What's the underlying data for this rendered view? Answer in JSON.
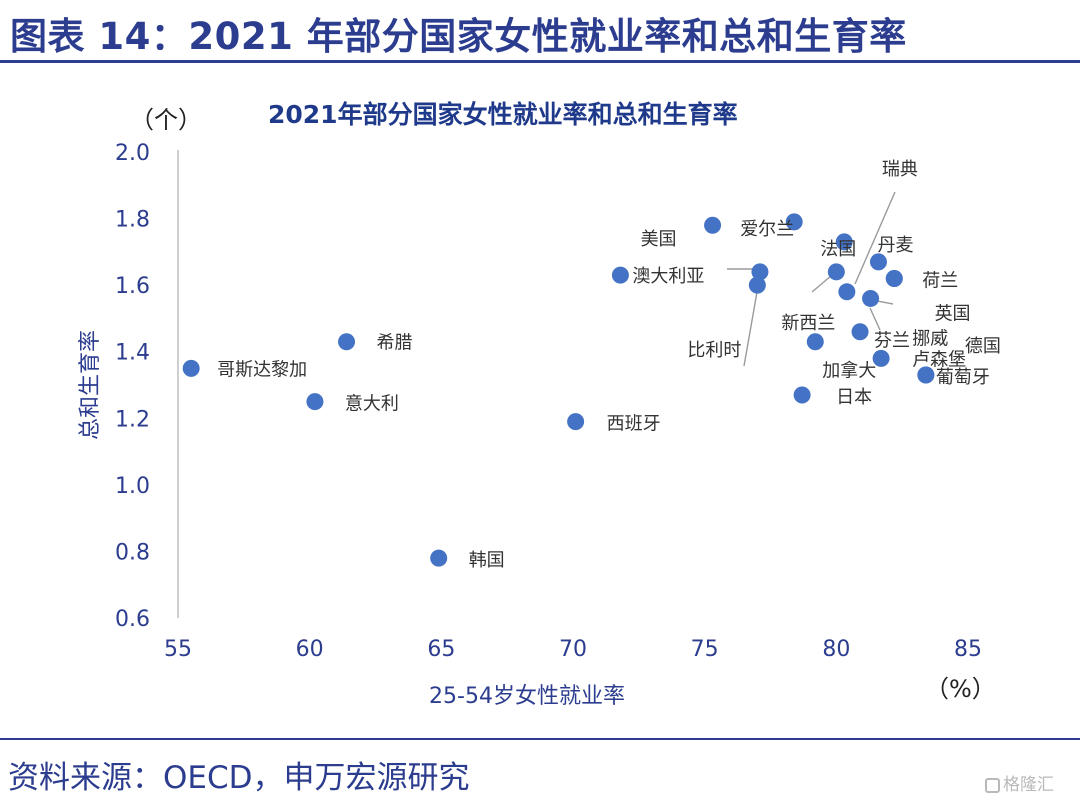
{
  "figure": {
    "title": "图表 14：2021 年部分国家女性就业率和总和生育率",
    "source": "资料来源：OECD，申万宏源研究",
    "watermark": "格隆汇"
  },
  "colors": {
    "accent": "#2c3d8f",
    "marker": "#4472c4",
    "chart_title": "#1f3a8a"
  },
  "chart_data": {
    "type": "scatter",
    "title": "2021年部分国家女性就业率和总和生育率",
    "xlabel": "25-54岁女性就业率",
    "ylabel": "总和生育率",
    "x_unit": "（%）",
    "y_unit": "（个）",
    "xlim": [
      55,
      85
    ],
    "ylim": [
      0.6,
      2.0
    ],
    "xticks": [
      "55",
      "60",
      "65",
      "70",
      "75",
      "80",
      "85"
    ],
    "yticks": [
      "0.6",
      "0.8",
      "1.0",
      "1.2",
      "1.4",
      "1.6",
      "1.8",
      "2.0"
    ],
    "grid": false,
    "legend": "none",
    "points": [
      {
        "label": "哥斯达黎加",
        "x": 55.5,
        "y": 1.35
      },
      {
        "label": "意大利",
        "x": 60.2,
        "y": 1.25
      },
      {
        "label": "希腊",
        "x": 61.4,
        "y": 1.43
      },
      {
        "label": "韩国",
        "x": 64.9,
        "y": 0.78
      },
      {
        "label": "西班牙",
        "x": 70.1,
        "y": 1.19
      },
      {
        "label": "澳大利亚",
        "x": 71.8,
        "y": 1.63
      },
      {
        "label": "美国",
        "x": 75.3,
        "y": 1.78
      },
      {
        "label": "比利时",
        "x": 77.0,
        "y": 1.6
      },
      {
        "label": "",
        "x": 77.1,
        "y": 1.64
      },
      {
        "label": "爱尔兰",
        "x": 78.4,
        "y": 1.79
      },
      {
        "label": "日本",
        "x": 78.7,
        "y": 1.27
      },
      {
        "label": "加拿大",
        "x": 79.2,
        "y": 1.43
      },
      {
        "label": "新西兰",
        "x": 80.0,
        "y": 1.64
      },
      {
        "label": "法国",
        "x": 80.3,
        "y": 1.73
      },
      {
        "label": "瑞典",
        "x": 80.4,
        "y": 1.58
      },
      {
        "label": "芬兰",
        "x": 80.9,
        "y": 1.46
      },
      {
        "label": "英国",
        "x": 81.3,
        "y": 1.56
      },
      {
        "label": "丹麦",
        "x": 81.6,
        "y": 1.67
      },
      {
        "label": "卢森堡",
        "x": 81.7,
        "y": 1.38
      },
      {
        "label": "荷兰",
        "x": 82.2,
        "y": 1.62
      },
      {
        "label": "挪威",
        "x": 82.2,
        "y": 1.62
      },
      {
        "label": "葡萄牙",
        "x": 83.4,
        "y": 1.33
      },
      {
        "label": "德国",
        "x": 83.4,
        "y": 1.33
      }
    ]
  }
}
